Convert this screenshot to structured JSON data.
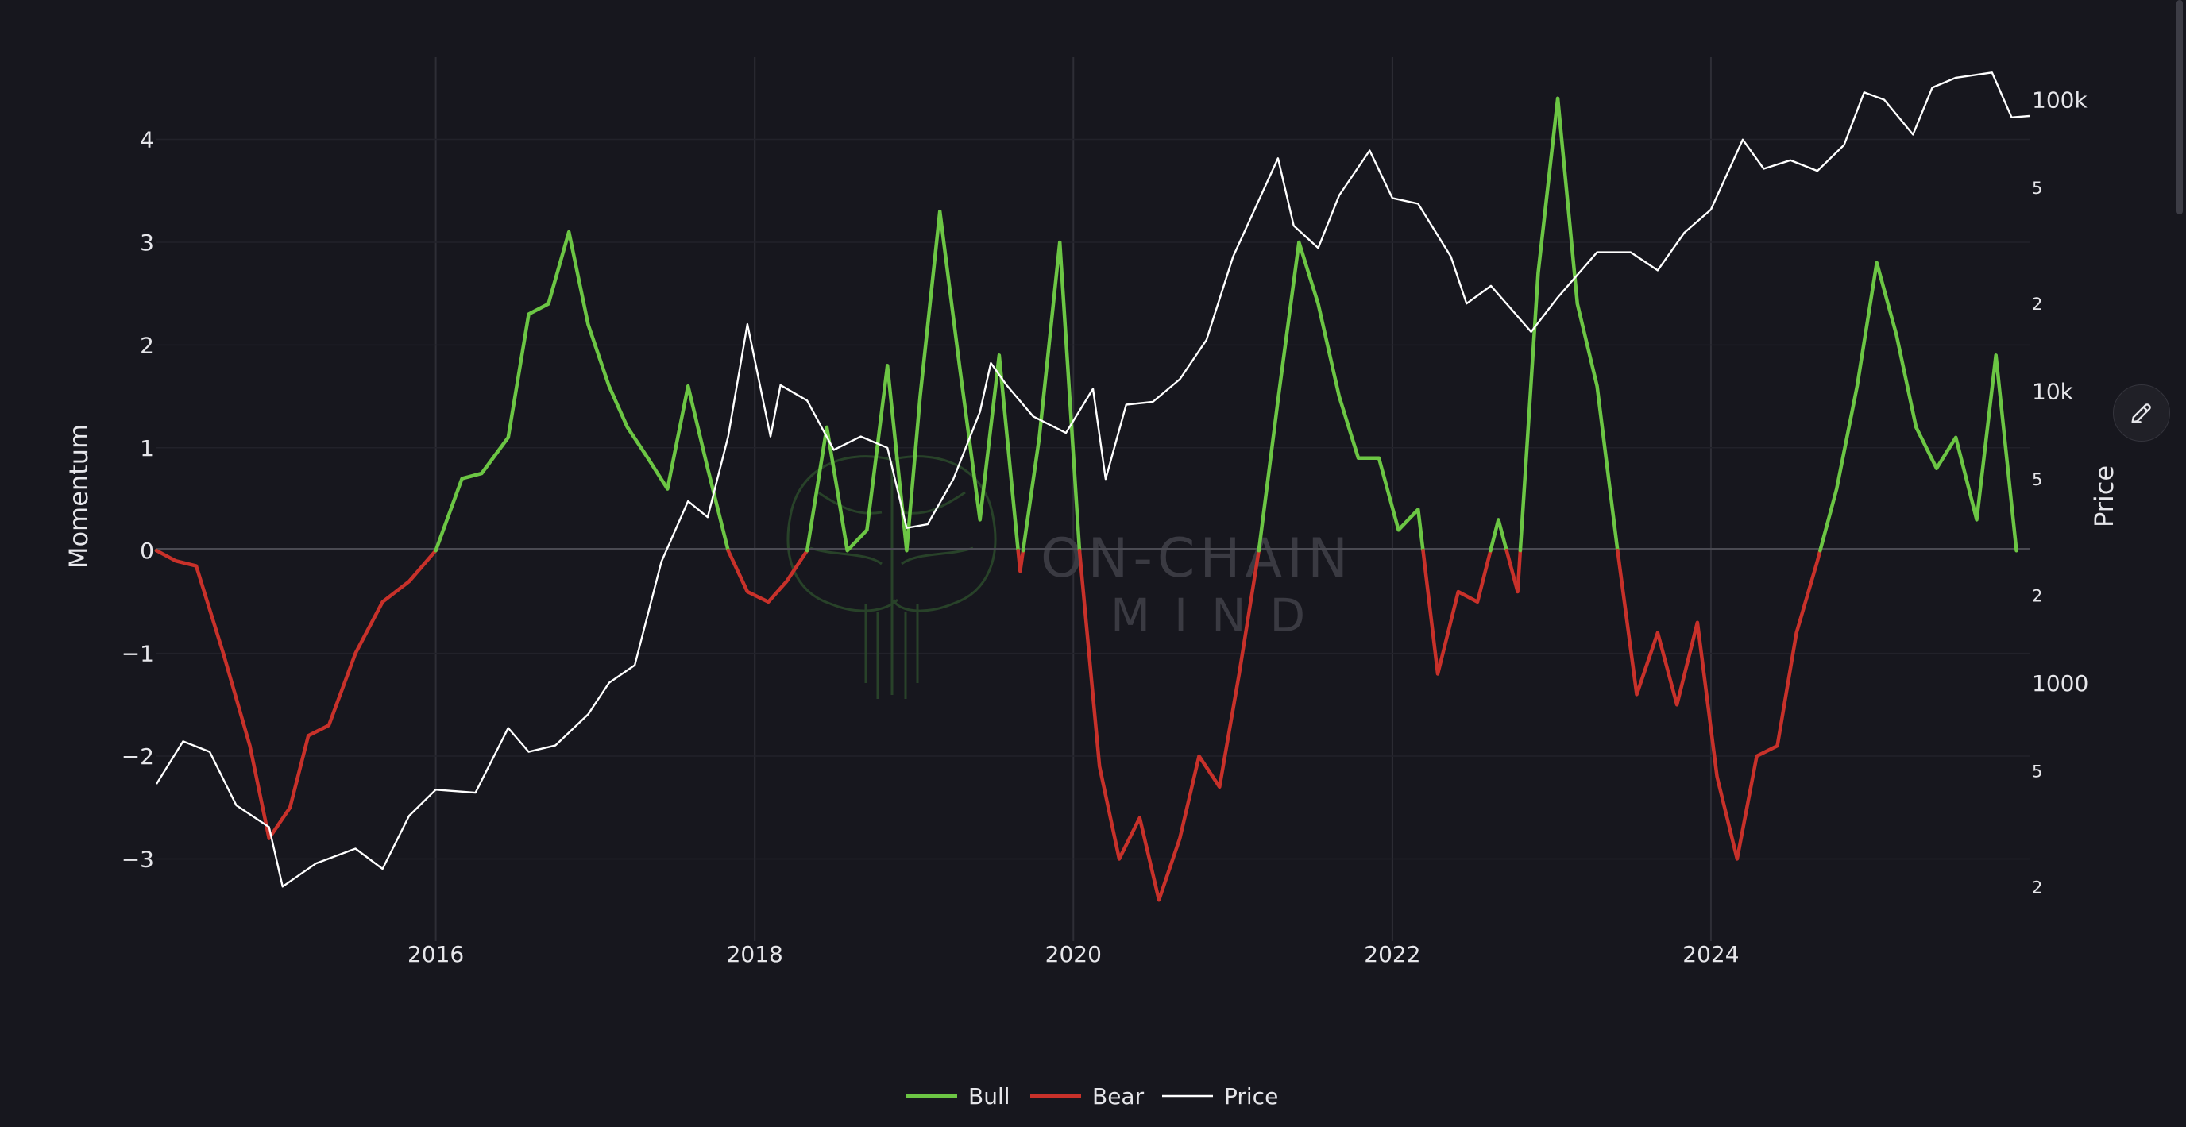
{
  "colors": {
    "bull": "#6cc644",
    "bear": "#c8312a",
    "price": "#ffffff",
    "background": "#17171e"
  },
  "edit_icon": "pencil-icon",
  "watermark": {
    "line1": "ON-CHAIN",
    "line2": "MIND"
  },
  "chart_data": {
    "type": "line",
    "x_axis": {
      "ticks": [
        "2016",
        "2018",
        "2020",
        "2022",
        "2024"
      ],
      "range": [
        "2014-04-01",
        "2025-12-31"
      ]
    },
    "y_axis_left": {
      "label": "Momentum",
      "ticks": [
        "4",
        "3",
        "2",
        "1",
        "0",
        "−1",
        "−2",
        "−3"
      ],
      "range": [
        -3.8,
        4.8
      ]
    },
    "y_axis_right": {
      "label": "Price",
      "scale": "log",
      "major_ticks": [
        "100k",
        "10k",
        "1000"
      ],
      "minor_ticks": [
        "5",
        "2",
        "5",
        "2",
        "5",
        "2",
        "5",
        "2"
      ],
      "range": [
        130,
        140000
      ]
    },
    "grid": true,
    "legend": {
      "position": "bottom-center",
      "entries": [
        "Bull",
        "Bear",
        "Price"
      ]
    },
    "momentum": [
      [
        "2014-04-01",
        0.0
      ],
      [
        "2014-05-15",
        -0.1
      ],
      [
        "2014-07-01",
        -0.15
      ],
      [
        "2014-09-01",
        -1.0
      ],
      [
        "2014-11-01",
        -1.9
      ],
      [
        "2014-12-15",
        -2.8
      ],
      [
        "2015-02-01",
        -2.5
      ],
      [
        "2015-03-15",
        -1.8
      ],
      [
        "2015-05-01",
        -1.7
      ],
      [
        "2015-07-01",
        -1.0
      ],
      [
        "2015-09-01",
        -0.5
      ],
      [
        "2015-11-01",
        -0.3
      ],
      [
        "2016-01-01",
        0.0
      ],
      [
        "2016-03-01",
        0.7
      ],
      [
        "2016-04-15",
        0.75
      ],
      [
        "2016-06-15",
        1.1
      ],
      [
        "2016-08-01",
        2.3
      ],
      [
        "2016-09-15",
        2.4
      ],
      [
        "2016-11-01",
        3.1
      ],
      [
        "2016-12-15",
        2.2
      ],
      [
        "2017-02-01",
        1.6
      ],
      [
        "2017-03-15",
        1.2
      ],
      [
        "2017-05-01",
        0.9
      ],
      [
        "2017-06-15",
        0.6
      ],
      [
        "2017-08-01",
        1.6
      ],
      [
        "2017-09-15",
        0.8
      ],
      [
        "2017-11-01",
        0.0
      ],
      [
        "2017-12-15",
        -0.4
      ],
      [
        "2018-02-01",
        -0.5
      ],
      [
        "2018-03-15",
        -0.3
      ],
      [
        "2018-05-01",
        0.0
      ],
      [
        "2018-06-15",
        1.2
      ],
      [
        "2018-08-01",
        0.0
      ],
      [
        "2018-09-15",
        0.2
      ],
      [
        "2018-11-01",
        1.8
      ],
      [
        "2018-12-15",
        0.0
      ],
      [
        "2019-01-15",
        1.5
      ],
      [
        "2019-03-01",
        3.3
      ],
      [
        "2019-04-15",
        1.8
      ],
      [
        "2019-06-01",
        0.3
      ],
      [
        "2019-07-15",
        1.9
      ],
      [
        "2019-09-01",
        -0.2
      ],
      [
        "2019-10-15",
        1.1
      ],
      [
        "2019-12-01",
        3.0
      ],
      [
        "2020-01-15",
        0.0
      ],
      [
        "2020-03-01",
        -2.1
      ],
      [
        "2020-04-15",
        -3.0
      ],
      [
        "2020-06-01",
        -2.6
      ],
      [
        "2020-07-15",
        -3.4
      ],
      [
        "2020-09-01",
        -2.8
      ],
      [
        "2020-10-15",
        -2.0
      ],
      [
        "2020-12-01",
        -2.3
      ],
      [
        "2021-01-15",
        -1.2
      ],
      [
        "2021-03-01",
        0.0
      ],
      [
        "2021-04-15",
        1.5
      ],
      [
        "2021-06-01",
        3.0
      ],
      [
        "2021-07-15",
        2.4
      ],
      [
        "2021-09-01",
        1.5
      ],
      [
        "2021-10-15",
        0.9
      ],
      [
        "2021-12-01",
        0.9
      ],
      [
        "2022-01-15",
        0.2
      ],
      [
        "2022-03-01",
        0.4
      ],
      [
        "2022-04-15",
        -1.2
      ],
      [
        "2022-06-01",
        -0.4
      ],
      [
        "2022-07-15",
        -0.5
      ],
      [
        "2022-09-01",
        0.3
      ],
      [
        "2022-10-15",
        -0.4
      ],
      [
        "2022-12-01",
        2.7
      ],
      [
        "2023-01-15",
        4.4
      ],
      [
        "2023-03-01",
        2.4
      ],
      [
        "2023-04-15",
        1.6
      ],
      [
        "2023-06-01",
        0.0
      ],
      [
        "2023-07-15",
        -1.4
      ],
      [
        "2023-09-01",
        -0.8
      ],
      [
        "2023-10-15",
        -1.5
      ],
      [
        "2023-12-01",
        -0.7
      ],
      [
        "2024-01-15",
        -2.2
      ],
      [
        "2024-03-01",
        -3.0
      ],
      [
        "2024-04-15",
        -2.0
      ],
      [
        "2024-06-01",
        -1.9
      ],
      [
        "2024-07-15",
        -0.8
      ],
      [
        "2024-09-01",
        -0.1
      ],
      [
        "2024-10-15",
        0.6
      ],
      [
        "2024-12-01",
        1.6
      ],
      [
        "2025-01-15",
        2.8
      ],
      [
        "2025-03-01",
        2.1
      ],
      [
        "2025-04-15",
        1.2
      ],
      [
        "2025-06-01",
        0.8
      ],
      [
        "2025-07-15",
        1.1
      ],
      [
        "2025-09-01",
        0.3
      ],
      [
        "2025-10-15",
        1.9
      ],
      [
        "2025-12-01",
        0.0
      ]
    ],
    "price": [
      [
        "2014-04-01",
        450
      ],
      [
        "2014-06-01",
        630
      ],
      [
        "2014-08-01",
        580
      ],
      [
        "2014-10-01",
        380
      ],
      [
        "2014-12-15",
        320
      ],
      [
        "2015-01-15",
        200
      ],
      [
        "2015-04-01",
        240
      ],
      [
        "2015-07-01",
        270
      ],
      [
        "2015-09-01",
        230
      ],
      [
        "2015-11-01",
        350
      ],
      [
        "2016-01-01",
        430
      ],
      [
        "2016-04-01",
        420
      ],
      [
        "2016-06-15",
        700
      ],
      [
        "2016-08-01",
        580
      ],
      [
        "2016-10-01",
        610
      ],
      [
        "2016-12-15",
        780
      ],
      [
        "2017-02-01",
        1000
      ],
      [
        "2017-04-01",
        1150
      ],
      [
        "2017-06-01",
        2600
      ],
      [
        "2017-08-01",
        4200
      ],
      [
        "2017-09-15",
        3700
      ],
      [
        "2017-11-01",
        7000
      ],
      [
        "2017-12-15",
        17000
      ],
      [
        "2018-02-06",
        7000
      ],
      [
        "2018-03-01",
        10500
      ],
      [
        "2018-05-01",
        9300
      ],
      [
        "2018-07-01",
        6300
      ],
      [
        "2018-09-01",
        7000
      ],
      [
        "2018-11-01",
        6400
      ],
      [
        "2018-12-15",
        3400
      ],
      [
        "2019-02-01",
        3500
      ],
      [
        "2019-04-01",
        5000
      ],
      [
        "2019-06-01",
        8500
      ],
      [
        "2019-06-26",
        12500
      ],
      [
        "2019-08-01",
        10500
      ],
      [
        "2019-10-01",
        8200
      ],
      [
        "2019-12-15",
        7200
      ],
      [
        "2020-02-15",
        10200
      ],
      [
        "2020-03-15",
        5000
      ],
      [
        "2020-05-01",
        9000
      ],
      [
        "2020-07-01",
        9200
      ],
      [
        "2020-09-01",
        11000
      ],
      [
        "2020-11-01",
        15000
      ],
      [
        "2021-01-01",
        29000
      ],
      [
        "2021-04-14",
        63000
      ],
      [
        "2021-05-20",
        37000
      ],
      [
        "2021-07-15",
        31000
      ],
      [
        "2021-09-01",
        47000
      ],
      [
        "2021-11-10",
        67000
      ],
      [
        "2022-01-01",
        46000
      ],
      [
        "2022-03-01",
        44000
      ],
      [
        "2022-05-15",
        29000
      ],
      [
        "2022-06-20",
        20000
      ],
      [
        "2022-08-15",
        23000
      ],
      [
        "2022-11-15",
        16000
      ],
      [
        "2023-01-15",
        21000
      ],
      [
        "2023-04-15",
        30000
      ],
      [
        "2023-07-01",
        30000
      ],
      [
        "2023-09-01",
        26000
      ],
      [
        "2023-11-01",
        35000
      ],
      [
        "2024-01-01",
        42000
      ],
      [
        "2024-03-14",
        73000
      ],
      [
        "2024-05-01",
        58000
      ],
      [
        "2024-07-01",
        62000
      ],
      [
        "2024-09-01",
        57000
      ],
      [
        "2024-11-01",
        70000
      ],
      [
        "2024-12-17",
        106000
      ],
      [
        "2025-02-01",
        100000
      ],
      [
        "2025-04-08",
        76000
      ],
      [
        "2025-05-22",
        110000
      ],
      [
        "2025-07-15",
        119000
      ],
      [
        "2025-10-06",
        124000
      ],
      [
        "2025-11-20",
        87000
      ],
      [
        "2025-12-31",
        88000
      ]
    ]
  }
}
